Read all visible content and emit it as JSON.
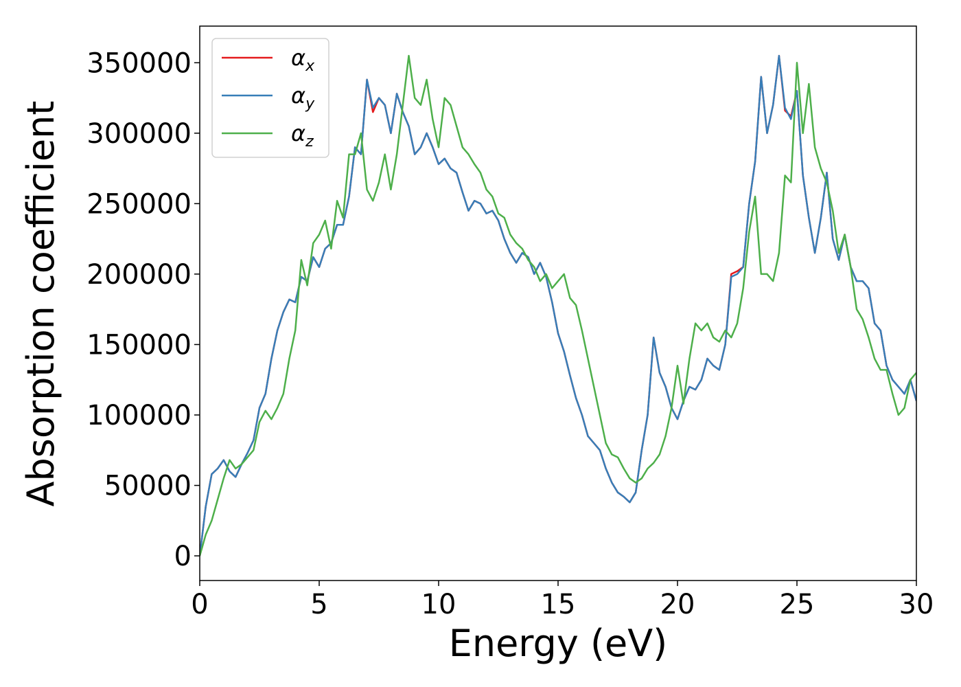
{
  "chart_data": {
    "type": "line",
    "xlabel": "Energy (eV)",
    "ylabel": "Absorption coefficient",
    "xlim": [
      0,
      30
    ],
    "xticks": [
      0,
      5,
      10,
      15,
      20,
      25,
      30
    ],
    "ylim": [
      -17500,
      376000
    ],
    "yticks": [
      0,
      50000,
      100000,
      150000,
      200000,
      250000,
      300000,
      350000
    ],
    "grid": false,
    "legend": "upper left",
    "x": [
      0,
      0.25,
      0.5,
      0.75,
      1,
      1.25,
      1.5,
      1.75,
      2,
      2.25,
      2.5,
      2.75,
      3,
      3.25,
      3.5,
      3.75,
      4,
      4.25,
      4.5,
      4.75,
      5,
      5.25,
      5.5,
      5.75,
      6,
      6.25,
      6.5,
      6.75,
      7,
      7.25,
      7.5,
      7.75,
      8,
      8.25,
      8.5,
      8.75,
      9,
      9.25,
      9.5,
      9.75,
      10,
      10.25,
      10.5,
      10.75,
      11,
      11.25,
      11.5,
      11.75,
      12,
      12.25,
      12.5,
      12.75,
      13,
      13.25,
      13.5,
      13.75,
      14,
      14.25,
      14.5,
      14.75,
      15,
      15.25,
      15.5,
      15.75,
      16,
      16.25,
      16.5,
      16.75,
      17,
      17.25,
      17.5,
      17.75,
      18,
      18.25,
      18.5,
      18.75,
      19,
      19.25,
      19.5,
      19.75,
      20,
      20.25,
      20.5,
      20.75,
      21,
      21.25,
      21.5,
      21.75,
      22,
      22.25,
      22.5,
      22.75,
      23,
      23.25,
      23.5,
      23.75,
      24,
      24.25,
      24.5,
      24.75,
      25,
      25.25,
      25.5,
      25.75,
      26,
      26.25,
      26.5,
      26.75,
      27,
      27.25,
      27.5,
      27.75,
      28,
      28.25,
      28.5,
      28.75,
      29,
      29.25,
      29.5,
      29.75,
      30
    ],
    "series": [
      {
        "name": "αx",
        "color": "#e41a1c",
        "values": [
          0,
          35000,
          58000,
          62000,
          68000,
          60000,
          56000,
          65000,
          73000,
          82000,
          105000,
          115000,
          140000,
          160000,
          173000,
          182000,
          180000,
          198000,
          195000,
          212000,
          205000,
          218000,
          222000,
          235000,
          235000,
          255000,
          290000,
          285000,
          338000,
          315000,
          325000,
          320000,
          300000,
          328000,
          315000,
          305000,
          285000,
          290000,
          300000,
          290000,
          278000,
          282000,
          275000,
          272000,
          258000,
          245000,
          252000,
          250000,
          243000,
          245000,
          238000,
          225000,
          215000,
          208000,
          215000,
          212000,
          200000,
          208000,
          198000,
          180000,
          158000,
          145000,
          128000,
          112000,
          100000,
          85000,
          80000,
          75000,
          62000,
          52000,
          45000,
          42000,
          38000,
          45000,
          75000,
          100000,
          155000,
          130000,
          120000,
          105000,
          97000,
          110000,
          120000,
          118000,
          125000,
          140000,
          135000,
          132000,
          150000,
          200000,
          202000,
          205000,
          250000,
          280000,
          340000,
          300000,
          320000,
          355000,
          316000,
          312000,
          330000,
          270000,
          240000,
          215000,
          240000,
          272000,
          225000,
          210000,
          228000,
          205000,
          195000,
          195000,
          190000,
          165000,
          160000,
          135000,
          125000,
          120000,
          115000,
          125000,
          110000
        ]
      },
      {
        "name": "αy",
        "color": "#377eb8",
        "values": [
          0,
          35000,
          58000,
          62000,
          68000,
          60000,
          56000,
          65000,
          73000,
          82000,
          105000,
          115000,
          140000,
          160000,
          173000,
          182000,
          180000,
          198000,
          195000,
          212000,
          205000,
          218000,
          222000,
          235000,
          235000,
          255000,
          290000,
          285000,
          338000,
          318000,
          325000,
          320000,
          300000,
          328000,
          315000,
          305000,
          285000,
          290000,
          300000,
          290000,
          278000,
          282000,
          275000,
          272000,
          258000,
          245000,
          252000,
          250000,
          243000,
          245000,
          238000,
          225000,
          215000,
          208000,
          215000,
          212000,
          200000,
          208000,
          198000,
          180000,
          158000,
          145000,
          128000,
          112000,
          100000,
          85000,
          80000,
          75000,
          62000,
          52000,
          45000,
          42000,
          38000,
          45000,
          75000,
          100000,
          155000,
          130000,
          120000,
          105000,
          97000,
          110000,
          120000,
          118000,
          125000,
          140000,
          135000,
          132000,
          150000,
          198000,
          200000,
          205000,
          250000,
          280000,
          340000,
          300000,
          320000,
          355000,
          318000,
          310000,
          330000,
          270000,
          240000,
          215000,
          240000,
          272000,
          225000,
          210000,
          228000,
          205000,
          195000,
          195000,
          190000,
          165000,
          160000,
          135000,
          125000,
          120000,
          115000,
          125000,
          110000
        ]
      },
      {
        "name": "αz",
        "color": "#4daf4a",
        "values": [
          0,
          15000,
          25000,
          40000,
          55000,
          68000,
          62000,
          65000,
          70000,
          75000,
          95000,
          103000,
          97000,
          105000,
          115000,
          140000,
          160000,
          210000,
          192000,
          222000,
          228000,
          238000,
          218000,
          252000,
          240000,
          285000,
          285000,
          300000,
          260000,
          252000,
          265000,
          285000,
          260000,
          285000,
          320000,
          355000,
          325000,
          320000,
          338000,
          310000,
          290000,
          325000,
          320000,
          305000,
          290000,
          285000,
          278000,
          272000,
          260000,
          255000,
          243000,
          240000,
          228000,
          222000,
          218000,
          210000,
          205000,
          195000,
          200000,
          190000,
          195000,
          200000,
          183000,
          178000,
          160000,
          140000,
          120000,
          100000,
          80000,
          72000,
          70000,
          62000,
          55000,
          52000,
          55000,
          62000,
          66000,
          72000,
          85000,
          105000,
          135000,
          108000,
          140000,
          165000,
          160000,
          165000,
          155000,
          152000,
          160000,
          155000,
          165000,
          190000,
          230000,
          255000,
          200000,
          200000,
          195000,
          215000,
          270000,
          265000,
          350000,
          300000,
          335000,
          290000,
          275000,
          265000,
          245000,
          215000,
          228000,
          205000,
          175000,
          168000,
          155000,
          140000,
          132000,
          132000,
          115000,
          100000,
          105000,
          125000,
          130000
        ]
      }
    ]
  }
}
